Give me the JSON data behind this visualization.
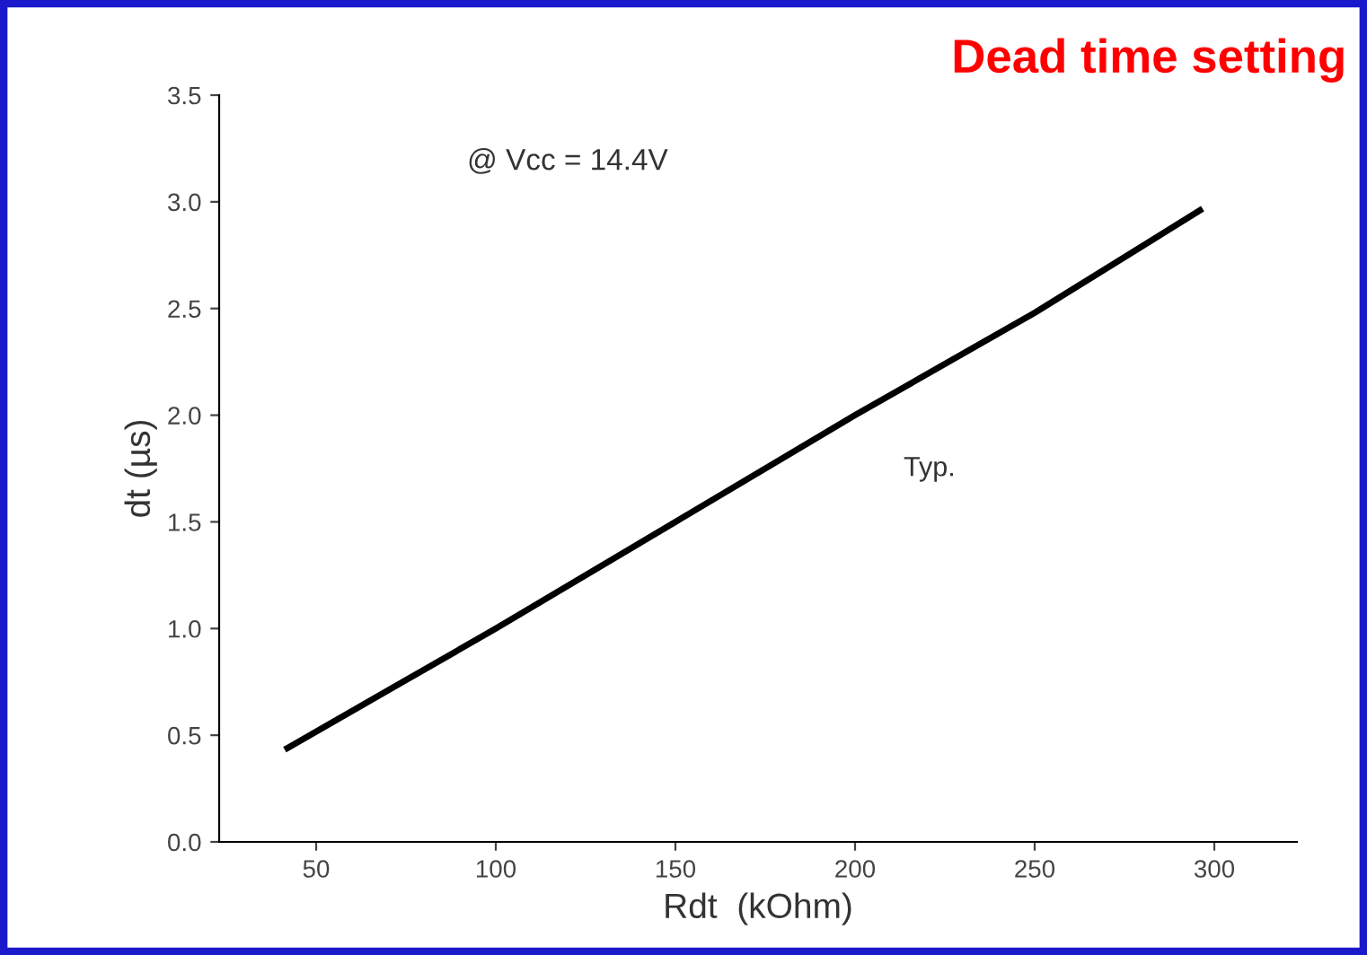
{
  "chart_data": {
    "type": "line",
    "title": "Dead time setting",
    "xlabel": "Rdt  (kOhm)",
    "ylabel": "dt (µs)",
    "x": [
      42,
      100,
      150,
      200,
      250,
      296
    ],
    "series": [
      {
        "color": "#000000",
        "values": [
          0.44,
          1.0,
          1.5,
          2.0,
          2.48,
          2.96
        ]
      }
    ],
    "xlim": [
      23,
      323
    ],
    "ylim": [
      0,
      3.5
    ],
    "xticks": [
      50,
      100,
      150,
      200,
      250,
      300
    ],
    "yticks": [
      {
        "value": 0,
        "label": "0.0"
      },
      {
        "value": 0.5,
        "label": "0.5"
      },
      {
        "value": 1,
        "label": "1.0"
      },
      {
        "value": 1.5,
        "label": "1.5"
      },
      {
        "value": 2,
        "label": "2.0"
      },
      {
        "value": 2.5,
        "label": "2.5"
      },
      {
        "value": 3,
        "label": "3.0"
      },
      {
        "value": 3.5,
        "label": "3.5"
      }
    ],
    "annotations": [
      "@ Vcc = 14.4V",
      "Typ."
    ],
    "grid": false,
    "legend": false,
    "marker": "none",
    "line_style": "solid"
  }
}
